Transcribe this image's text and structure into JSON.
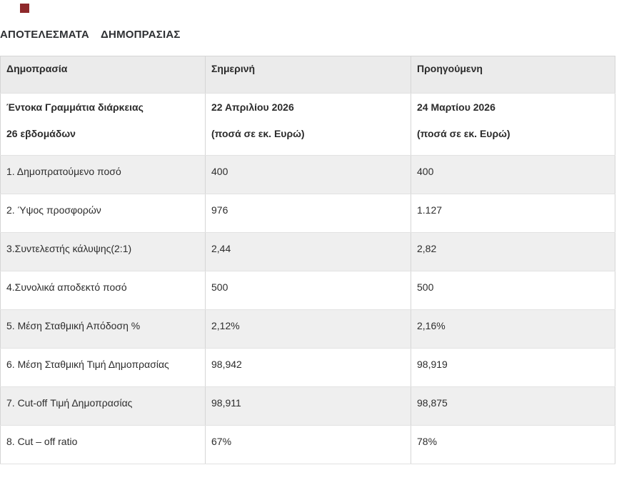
{
  "logo": {
    "color": "#8e282b"
  },
  "page": {
    "title": "ΑΠΟΤΕΛΕΣΜΑΤΑ  ΔΗΜΟΠΡΑΣΙΑΣ"
  },
  "table": {
    "headers": [
      "Δημοπρασία",
      "Σημερινή",
      "Προηγούμενη"
    ],
    "subheader": {
      "instrument_line1": "Έντοκα Γραμμάτια διάρκειας",
      "instrument_line2": "26 εβδομάδων",
      "current_date": "22 Απριλίου 2026",
      "current_unit": "(ποσά σε εκ. Ευρώ)",
      "previous_date": "24 Μαρτίου 2026",
      "previous_unit": "(ποσά σε εκ. Ευρώ)"
    },
    "rows": [
      {
        "label": "1. Δημοπρατούμενο ποσό",
        "current": "400",
        "previous": "400"
      },
      {
        "label": "2. Ύψος προσφορών",
        "current": "976",
        "previous": "1.127"
      },
      {
        "label": "3.Συντελεστής κάλυψης(2:1)",
        "current": "2,44",
        "previous": "2,82"
      },
      {
        "label": "4.Συνολικά αποδεκτό ποσό",
        "current": "500",
        "previous": "500"
      },
      {
        "label": "5. Μέση Σταθμική Απόδοση %",
        "current": "2,12%",
        "previous": "2,16%"
      },
      {
        "label": "6. Μέση Σταθμική Τιμή Δημοπρασίας",
        "current": "98,942",
        "previous": "98,919"
      },
      {
        "label": "7. Cut-off Τιμή Δημοπρασίας",
        "current": "98,911",
        "previous": "98,875"
      },
      {
        "label": "8. Cut – off ratio",
        "current": "67%",
        "previous": "78%"
      }
    ]
  }
}
